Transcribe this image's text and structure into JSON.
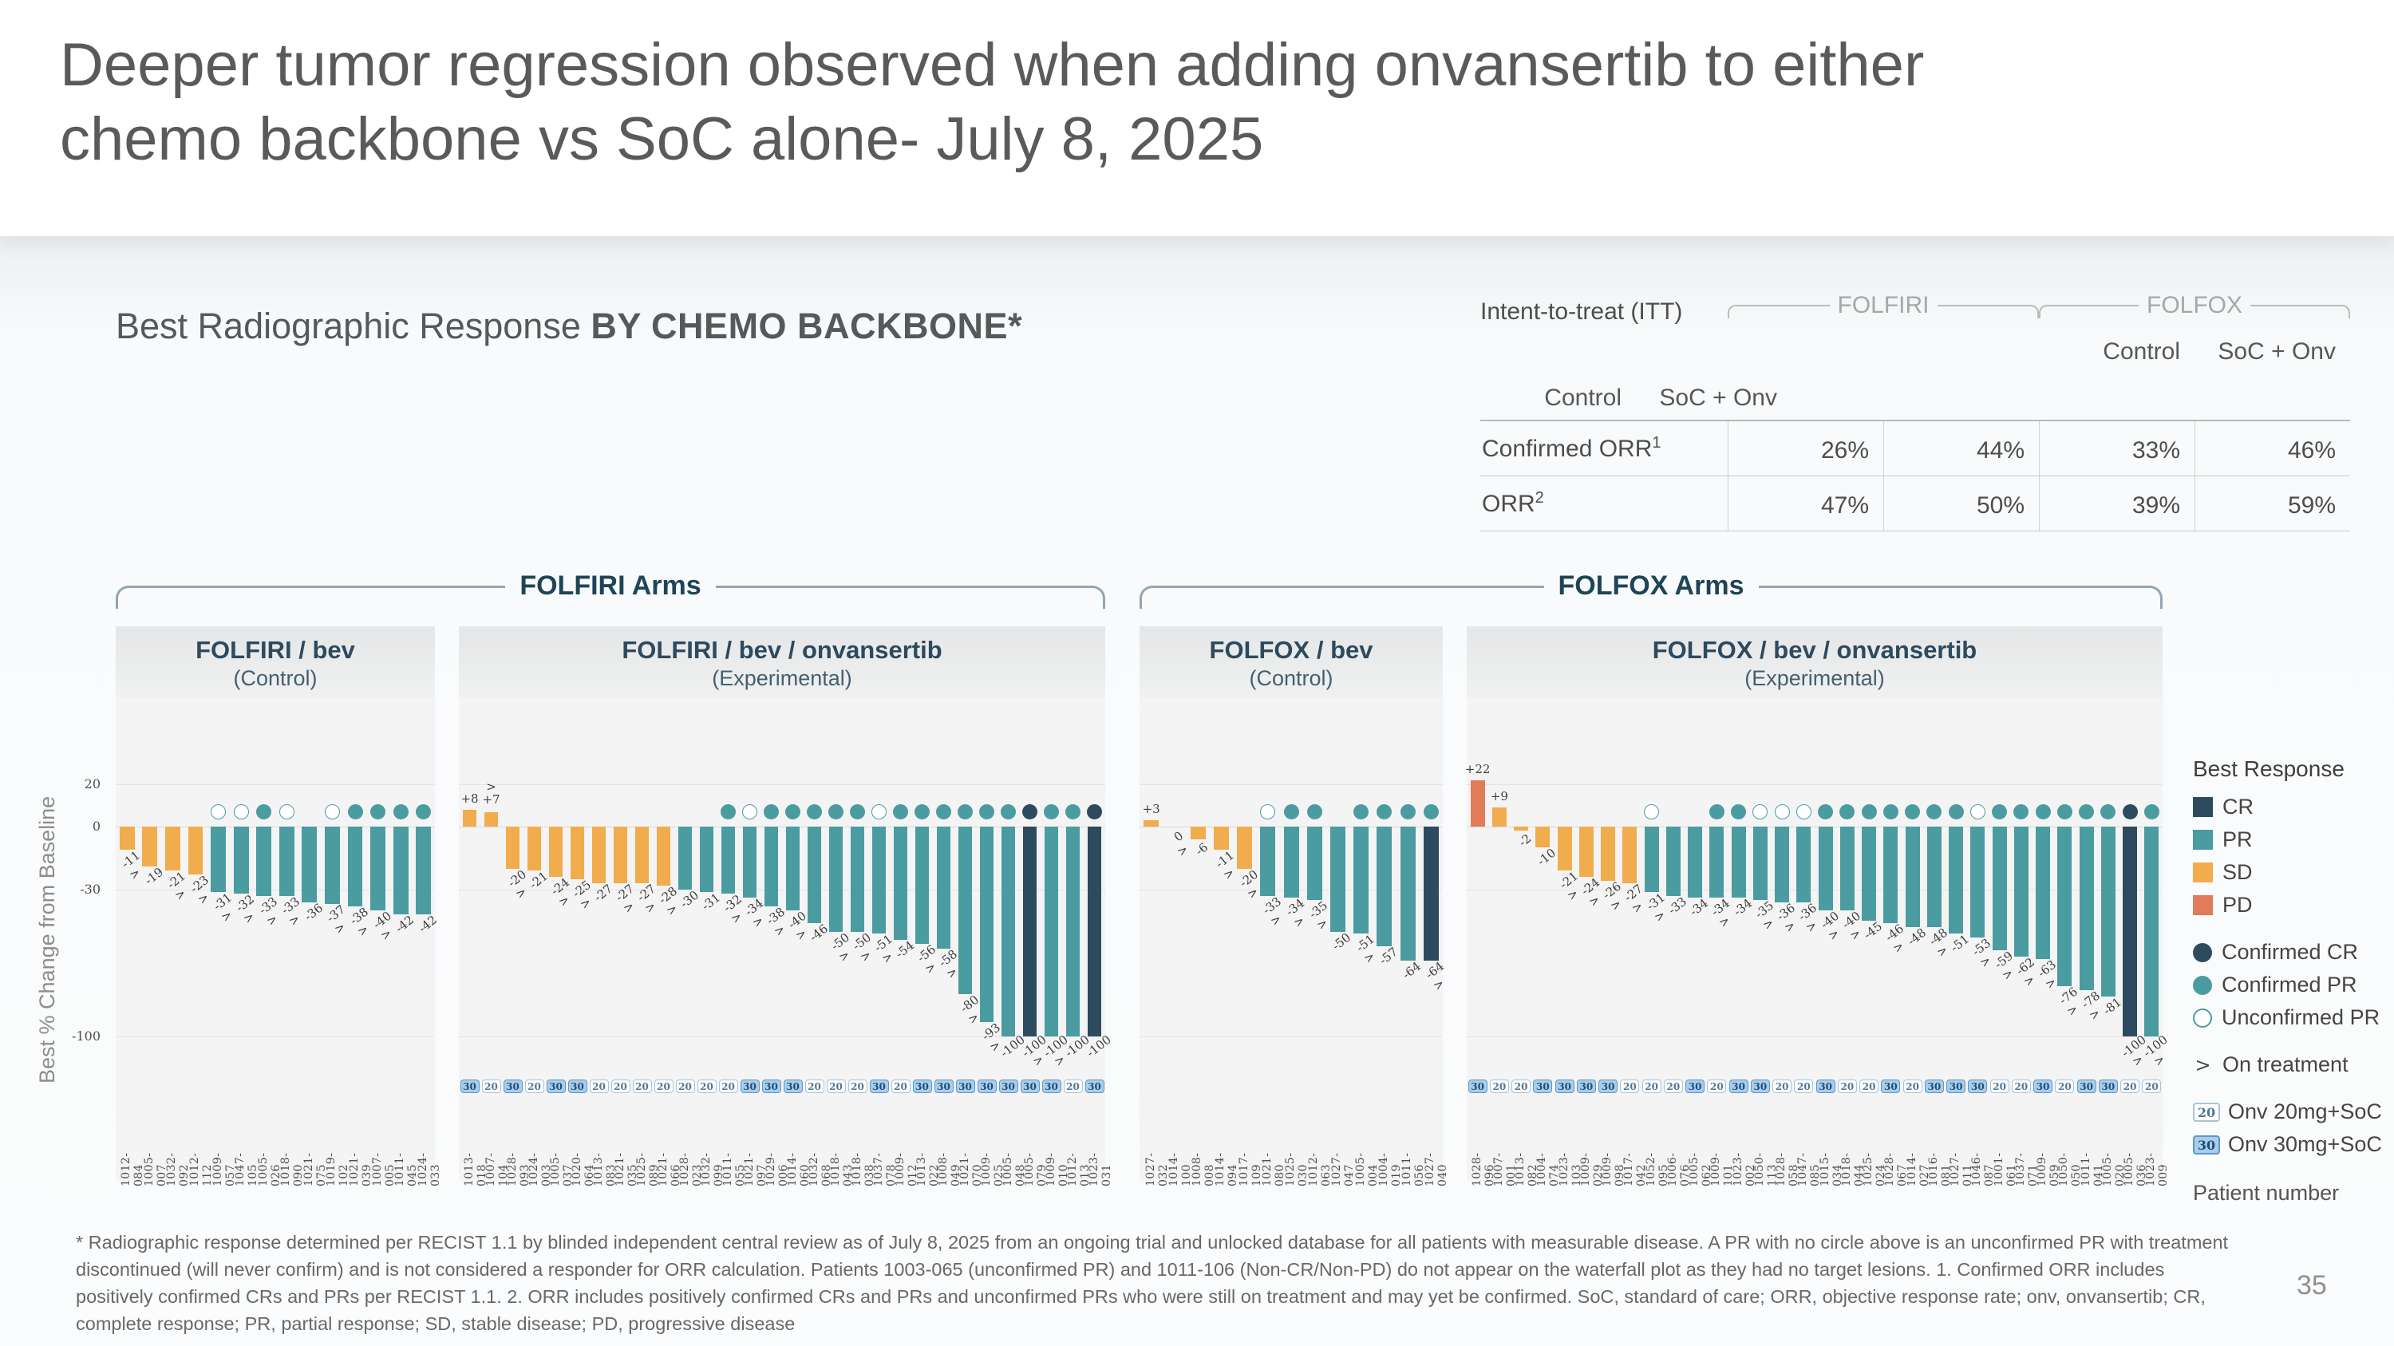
{
  "slide": {
    "title": "Deeper tumor regression observed when adding onvansertib to either\nchemo backbone vs SoC alone- July 8, 2025",
    "page_number": "35",
    "footnote": "* Radiographic response determined per RECIST 1.1 by blinded independent central review as of July 8, 2025 from an ongoing trial and unlocked database for all patients with measurable disease. A PR with no circle above is an unconfirmed PR with treatment discontinued (will never confirm) and is not considered a responder for ORR calculation. Patients 1003-065 (unconfirmed PR) and 1011-106 (Non-CR/Non-PD) do not appear on the waterfall plot as they had no target lesions. 1. Confirmed ORR includes positively confirmed CRs and PRs per RECIST 1.1. 2. ORR includes positively confirmed CRs and PRs and unconfirmed PRs who were still on treatment and may yet be confirmed. SoC, standard of care; ORR, objective response rate; onv, onvansertib; CR, complete response; PR, partial response; SD, stable disease; PD, progressive disease"
  },
  "section": {
    "heading_normal": "Best Radiographic Response ",
    "heading_caps": "BY CHEMO BACKBONE*"
  },
  "itt_table": {
    "row_header": "Intent-to-treat (ITT)",
    "groups": [
      "FOLFIRI",
      "FOLFOX"
    ],
    "col_headers": [
      "Control",
      "SoC + Onv",
      "Control",
      "SoC + Onv"
    ],
    "rows": [
      {
        "label": "Confirmed ORR",
        "sup": "1",
        "values": [
          "26%",
          "44%",
          "33%",
          "46%"
        ]
      },
      {
        "label": "ORR",
        "sup": "2",
        "values": [
          "47%",
          "50%",
          "39%",
          "59%"
        ]
      }
    ]
  },
  "arm_groups": [
    {
      "label": "FOLFIRI Arms"
    },
    {
      "label": "FOLFOX Arms"
    }
  ],
  "colors": {
    "CR": "#2D4B5E",
    "PR": "#4A9CA1",
    "SD": "#F1AC4D",
    "PD": "#E17B59",
    "badge30_bg": "#A9CDEB",
    "badge30_border": "#5E98C8",
    "badge20_bg": "#FDFDFE",
    "badge20_border": "#A9C3D6"
  },
  "legend": {
    "title": "Best Response",
    "response_items": [
      {
        "label": "CR",
        "color": "#2D4B5E"
      },
      {
        "label": "PR",
        "color": "#4A9CA1"
      },
      {
        "label": "SD",
        "color": "#F1AC4D"
      },
      {
        "label": "PD",
        "color": "#E17B59"
      }
    ],
    "circle_items": [
      {
        "label": "Confirmed CR",
        "type": "filled",
        "color": "#2D4B5E"
      },
      {
        "label": "Confirmed PR",
        "type": "filled",
        "color": "#4A9CA1"
      },
      {
        "label": "Unconfirmed PR",
        "type": "open",
        "color": "#4A9CA1"
      }
    ],
    "on_treatment": {
      "symbol": ">",
      "label": "On treatment"
    },
    "dose_items": [
      {
        "badge": "20",
        "label": "Onv 20mg+SoC"
      },
      {
        "badge": "30",
        "label": "Onv 30mg+SoC"
      }
    ],
    "patient_number_label": "Patient number"
  },
  "chart_data": [
    {
      "type": "bar",
      "title": "FOLFIRI / bev",
      "subtitle": "(Control)",
      "ylabel": "Best % Change from Baseline",
      "yticks": [
        20,
        0,
        -30,
        -100
      ],
      "ylim": [
        -112,
        30
      ],
      "bars": [
        {
          "id": "1012-084",
          "v": -11,
          "r": "SD",
          "on": true,
          "c": null,
          "d": null
        },
        {
          "id": "1005-007",
          "v": -19,
          "r": "SD",
          "on": false,
          "c": null,
          "d": null
        },
        {
          "id": "1032-092",
          "v": -21,
          "r": "SD",
          "on": true,
          "c": null,
          "d": null
        },
        {
          "id": "1012-112",
          "v": -23,
          "r": "SD",
          "on": true,
          "c": null,
          "d": null
        },
        {
          "id": "1009-057",
          "v": -31,
          "r": "PR",
          "on": true,
          "c": "U",
          "d": null
        },
        {
          "id": "1047-105",
          "v": -32,
          "r": "PR",
          "on": true,
          "c": "U",
          "d": null
        },
        {
          "id": "1005-026",
          "v": -33,
          "r": "PR",
          "on": true,
          "c": "P",
          "d": null
        },
        {
          "id": "1018-090",
          "v": -33,
          "r": "PR",
          "on": true,
          "c": "U",
          "d": null
        },
        {
          "id": "1021-075",
          "v": -36,
          "r": "PR",
          "on": false,
          "c": null,
          "d": null
        },
        {
          "id": "1019-102",
          "v": -37,
          "r": "PR",
          "on": true,
          "c": "U",
          "d": null
        },
        {
          "id": "1021-039",
          "v": -38,
          "r": "PR",
          "on": true,
          "c": "P",
          "d": null
        },
        {
          "id": "1007-005",
          "v": -40,
          "r": "PR",
          "on": true,
          "c": "P",
          "d": null
        },
        {
          "id": "1011-045",
          "v": -42,
          "r": "PR",
          "on": false,
          "c": "P",
          "d": null
        },
        {
          "id": "1024-033",
          "v": -42,
          "r": "PR",
          "on": false,
          "c": "P",
          "d": null
        }
      ]
    },
    {
      "type": "bar",
      "title": "FOLFIRI / bev / onvansertib",
      "subtitle": "(Experimental)",
      "ylabel": "Best % Change from Baseline",
      "yticks": [
        20,
        0,
        -30,
        -100
      ],
      "ylim": [
        -112,
        30
      ],
      "bars": [
        {
          "id": "1013-018",
          "v": 8,
          "r": "SD",
          "on": false,
          "c": null,
          "d": 30
        },
        {
          "id": "1007-104",
          "v": 7,
          "r": "SD",
          "on": true,
          "c": null,
          "d": 20
        },
        {
          "id": "1028-093",
          "v": -20,
          "r": "SD",
          "on": true,
          "c": null,
          "d": 30
        },
        {
          "id": "1024-003",
          "v": -21,
          "r": "SD",
          "on": false,
          "c": null,
          "d": 20
        },
        {
          "id": "1005-037",
          "v": -24,
          "r": "SD",
          "on": true,
          "c": null,
          "d": 30
        },
        {
          "id": "1020-064",
          "v": -25,
          "r": "SD",
          "on": true,
          "c": null,
          "d": 30
        },
        {
          "id": "1013-083",
          "v": -27,
          "r": "SD",
          "on": false,
          "c": null,
          "d": 20
        },
        {
          "id": "1021-035",
          "v": -27,
          "r": "SD",
          "on": true,
          "c": null,
          "d": 20
        },
        {
          "id": "1025-089",
          "v": -27,
          "r": "SD",
          "on": true,
          "c": null,
          "d": 20
        },
        {
          "id": "1021-066",
          "v": -28,
          "r": "SD",
          "on": true,
          "c": null,
          "d": 20
        },
        {
          "id": "1028-023",
          "v": -30,
          "r": "PR",
          "on": false,
          "c": null,
          "d": 20
        },
        {
          "id": "1032-099",
          "v": -31,
          "r": "PR",
          "on": false,
          "c": null,
          "d": 20
        },
        {
          "id": "1011-055",
          "v": -32,
          "r": "PR",
          "on": true,
          "c": "P",
          "d": 20
        },
        {
          "id": "1021-097",
          "v": -34,
          "r": "PR",
          "on": true,
          "c": "U",
          "d": 30
        },
        {
          "id": "1029-006",
          "v": -38,
          "r": "PR",
          "on": true,
          "c": "P",
          "d": 30
        },
        {
          "id": "1014-060",
          "v": -40,
          "r": "PR",
          "on": true,
          "c": "P",
          "d": 30
        },
        {
          "id": "1032-068",
          "v": -46,
          "r": "PR",
          "on": false,
          "c": "P",
          "d": 20
        },
        {
          "id": "1018-043",
          "v": -50,
          "r": "PR",
          "on": true,
          "c": "P",
          "d": 20
        },
        {
          "id": "1018-038",
          "v": -50,
          "r": "PR",
          "on": true,
          "c": "P",
          "d": 20
        },
        {
          "id": "1037-078",
          "v": -51,
          "r": "PR",
          "on": true,
          "c": "U",
          "d": 30
        },
        {
          "id": "1009-012",
          "v": -54,
          "r": "PR",
          "on": false,
          "c": "P",
          "d": 20
        },
        {
          "id": "1013-022",
          "v": -56,
          "r": "PR",
          "on": true,
          "c": "P",
          "d": 30
        },
        {
          "id": "1008-049",
          "v": -58,
          "r": "PR",
          "on": true,
          "c": "P",
          "d": 30
        },
        {
          "id": "1021-070",
          "v": -80,
          "r": "PR",
          "on": true,
          "c": "P",
          "d": 30
        },
        {
          "id": "1009-025",
          "v": -93,
          "r": "PR",
          "on": true,
          "c": "P",
          "d": 30
        },
        {
          "id": "1005-048",
          "v": -100,
          "r": "PR",
          "on": false,
          "c": "P",
          "d": 30
        },
        {
          "id": "1005-079",
          "v": -100,
          "r": "CR",
          "on": true,
          "c": "C",
          "d": 30
        },
        {
          "id": "1009-010",
          "v": -100,
          "r": "PR",
          "on": true,
          "c": "P",
          "d": 30
        },
        {
          "id": "1012-013",
          "v": -100,
          "r": "PR",
          "on": false,
          "c": "P",
          "d": 20
        },
        {
          "id": "1023-031",
          "v": -100,
          "r": "CR",
          "on": false,
          "c": "C",
          "d": 30
        }
      ]
    },
    {
      "type": "bar",
      "title": "FOLFOX / bev",
      "subtitle": "(Control)",
      "ylabel": "Best % Change from Baseline",
      "yticks": [
        20,
        0,
        -30,
        -100
      ],
      "ylim": [
        -112,
        30
      ],
      "bars": [
        {
          "id": "1027-032",
          "v": 3,
          "r": "SD",
          "on": false,
          "c": null,
          "d": null
        },
        {
          "id": "1014-100",
          "v": 0,
          "r": "SD",
          "on": true,
          "c": null,
          "d": null
        },
        {
          "id": "1008-008",
          "v": -6,
          "r": "SD",
          "on": false,
          "c": null,
          "d": null
        },
        {
          "id": "1014-094",
          "v": -11,
          "r": "SD",
          "on": true,
          "c": null,
          "d": null
        },
        {
          "id": "1017-109",
          "v": -20,
          "r": "SD",
          "on": true,
          "c": null,
          "d": null
        },
        {
          "id": "1021-080",
          "v": -33,
          "r": "PR",
          "on": true,
          "c": "U",
          "d": null
        },
        {
          "id": "1025-030",
          "v": -34,
          "r": "PR",
          "on": true,
          "c": "P",
          "d": null
        },
        {
          "id": "1012-063",
          "v": -35,
          "r": "PR",
          "on": true,
          "c": "P",
          "d": null
        },
        {
          "id": "1027-047",
          "v": -50,
          "r": "PR",
          "on": false,
          "c": null,
          "d": null
        },
        {
          "id": "1005-004",
          "v": -51,
          "r": "PR",
          "on": true,
          "c": "P",
          "d": null
        },
        {
          "id": "1004-019",
          "v": -57,
          "r": "PR",
          "on": false,
          "c": "P",
          "d": null
        },
        {
          "id": "1011-056",
          "v": -64,
          "r": "PR",
          "on": false,
          "c": "P",
          "d": null
        },
        {
          "id": "1027-040",
          "v": -64,
          "r": "CR",
          "on": true,
          "c": "P",
          "d": null
        }
      ]
    },
    {
      "type": "bar",
      "title": "FOLFOX / bev / onvansertib",
      "subtitle": "(Experimental)",
      "ylabel": "Best % Change from Baseline",
      "yticks": [
        20,
        0,
        -30,
        -100
      ],
      "ylim": [
        -112,
        30
      ],
      "bars": [
        {
          "id": "1028-096",
          "v": 22,
          "r": "PD",
          "on": false,
          "c": null,
          "d": 30
        },
        {
          "id": "1007-001",
          "v": 9,
          "r": "SD",
          "on": false,
          "c": null,
          "d": 20
        },
        {
          "id": "1013-082",
          "v": -2,
          "r": "SD",
          "on": false,
          "c": null,
          "d": 20
        },
        {
          "id": "1004-074",
          "v": -10,
          "r": "SD",
          "on": false,
          "c": null,
          "d": 30
        },
        {
          "id": "1023-103",
          "v": -21,
          "r": "SD",
          "on": true,
          "c": null,
          "d": 30
        },
        {
          "id": "1009-029",
          "v": -24,
          "r": "SD",
          "on": true,
          "c": null,
          "d": 30
        },
        {
          "id": "1009-098",
          "v": -26,
          "r": "SD",
          "on": true,
          "c": null,
          "d": 30
        },
        {
          "id": "1017-042",
          "v": -27,
          "r": "SD",
          "on": true,
          "c": null,
          "d": 20
        },
        {
          "id": "1052-095",
          "v": -31,
          "r": "PR",
          "on": true,
          "c": "U",
          "d": 20
        },
        {
          "id": "1006-076",
          "v": -33,
          "r": "PR",
          "on": false,
          "c": null,
          "d": 20
        },
        {
          "id": "1005-062",
          "v": -34,
          "r": "PR",
          "on": false,
          "c": null,
          "d": 30
        },
        {
          "id": "1009-101",
          "v": -34,
          "r": "PR",
          "on": true,
          "c": "P",
          "d": 20
        },
        {
          "id": "1023-002",
          "v": -34,
          "r": "PR",
          "on": false,
          "c": "P",
          "d": 30
        },
        {
          "id": "1050-113",
          "v": -35,
          "r": "PR",
          "on": true,
          "c": "U",
          "d": 30
        },
        {
          "id": "1028-058",
          "v": -36,
          "r": "PR",
          "on": true,
          "c": "U",
          "d": 20
        },
        {
          "id": "1047-085",
          "v": -36,
          "r": "PR",
          "on": true,
          "c": "U",
          "d": 20
        },
        {
          "id": "1015-034",
          "v": -40,
          "r": "PR",
          "on": true,
          "c": "P",
          "d": 30
        },
        {
          "id": "1018-044",
          "v": -40,
          "r": "PR",
          "on": true,
          "c": "P",
          "d": 20
        },
        {
          "id": "1025-024",
          "v": -45,
          "r": "PR",
          "on": false,
          "c": "P",
          "d": 20
        },
        {
          "id": "1028-067",
          "v": -46,
          "r": "PR",
          "on": true,
          "c": "P",
          "d": 30
        },
        {
          "id": "1014-027",
          "v": -48,
          "r": "PR",
          "on": false,
          "c": "P",
          "d": 20
        },
        {
          "id": "1016-081",
          "v": -48,
          "r": "PR",
          "on": true,
          "c": "P",
          "d": 30
        },
        {
          "id": "1027-011",
          "v": -51,
          "r": "PR",
          "on": false,
          "c": "P",
          "d": 30
        },
        {
          "id": "1046-087",
          "v": -53,
          "r": "PR",
          "on": true,
          "c": "U",
          "d": 30
        },
        {
          "id": "1001-061",
          "v": -59,
          "r": "PR",
          "on": true,
          "c": "P",
          "d": 20
        },
        {
          "id": "1037-071",
          "v": -62,
          "r": "PR",
          "on": true,
          "c": "P",
          "d": 20
        },
        {
          "id": "1009-059",
          "v": -63,
          "r": "PR",
          "on": true,
          "c": "P",
          "d": 30
        },
        {
          "id": "1050-050",
          "v": -76,
          "r": "PR",
          "on": true,
          "c": "P",
          "d": 20
        },
        {
          "id": "1011-041",
          "v": -78,
          "r": "PR",
          "on": true,
          "c": "P",
          "d": 30
        },
        {
          "id": "1005-020",
          "v": -81,
          "r": "PR",
          "on": false,
          "c": "P",
          "d": 30
        },
        {
          "id": "1005-036",
          "v": -100,
          "r": "CR",
          "on": true,
          "c": "C",
          "d": 20
        },
        {
          "id": "1023-009",
          "v": -100,
          "r": "PR",
          "on": true,
          "c": "P",
          "d": 20
        }
      ]
    }
  ]
}
